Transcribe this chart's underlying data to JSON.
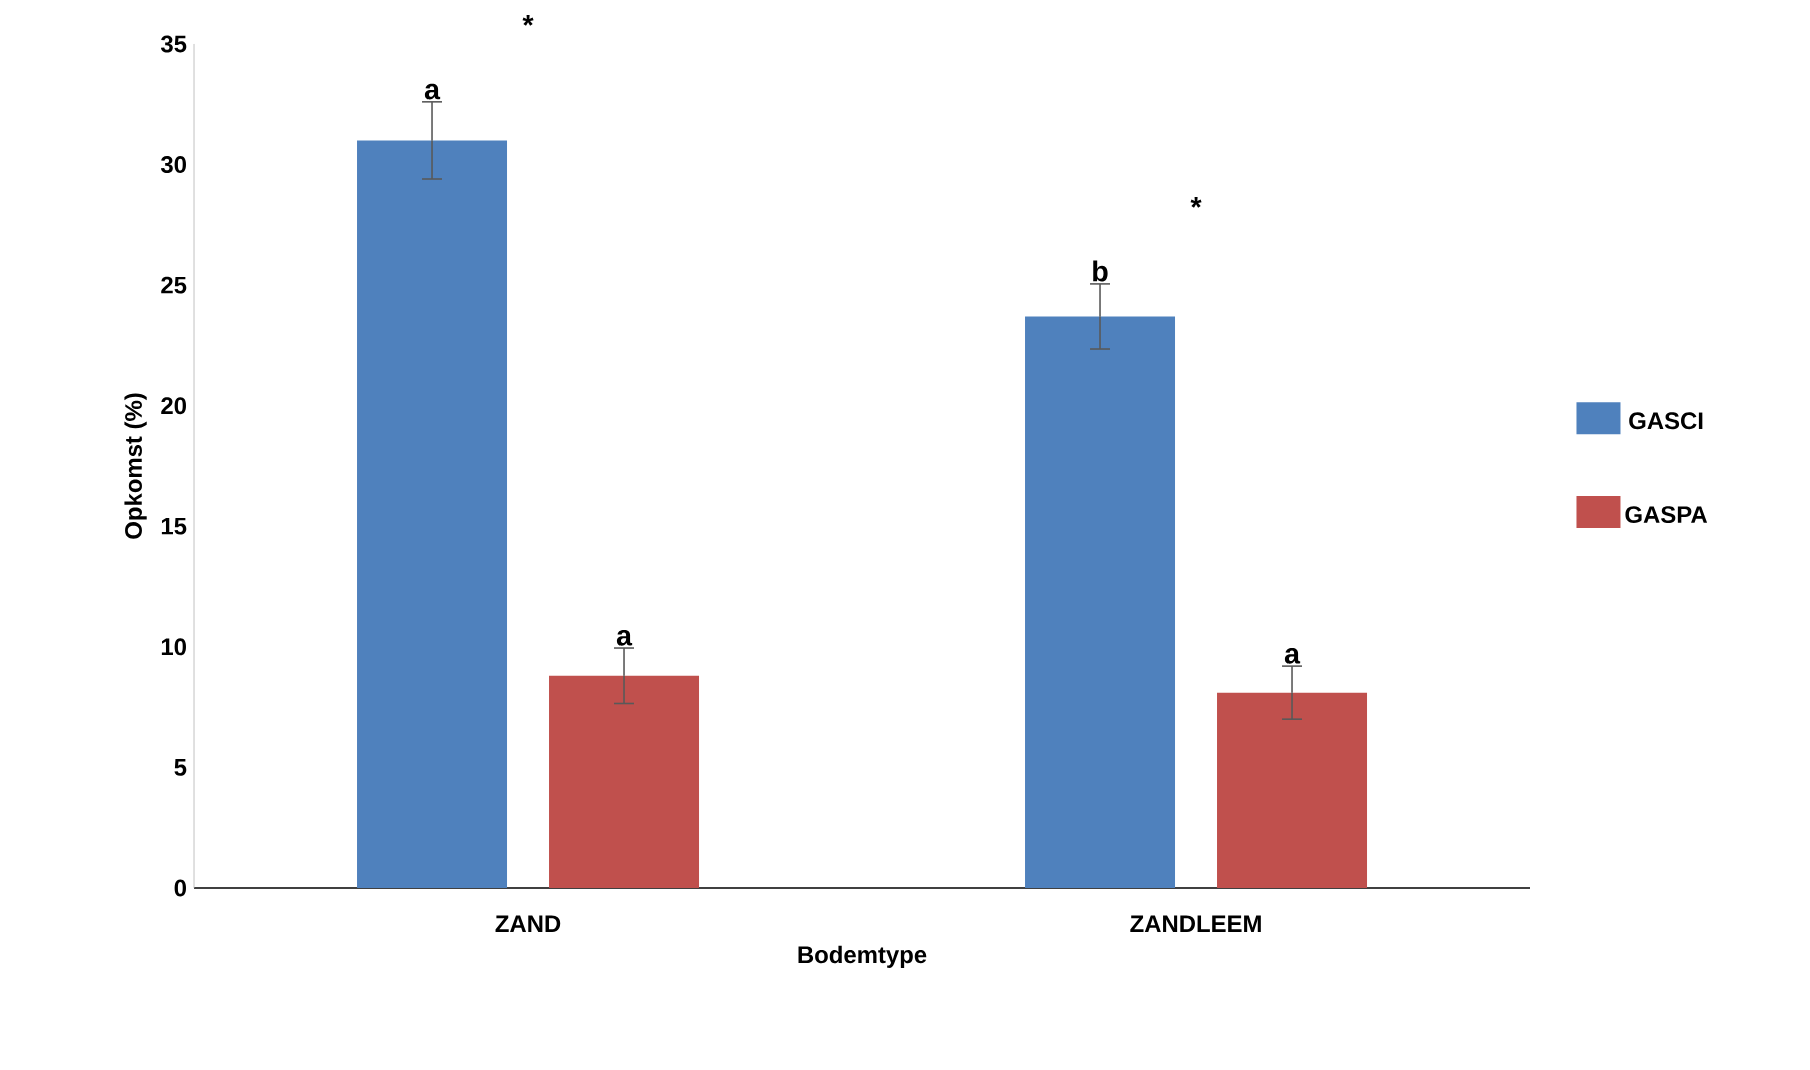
{
  "chart_data": {
    "type": "bar",
    "xlabel": "Bodemtype",
    "ylabel": "Opkomst (%)",
    "categories": [
      "ZAND",
      "ZANDLEEM"
    ],
    "series": [
      {
        "name": "GASCI",
        "color": "#4f81bd",
        "values": [
          31.0,
          23.7
        ],
        "errors": [
          1.6,
          1.35
        ],
        "value_labels": [
          "a",
          "b"
        ]
      },
      {
        "name": "GASPA",
        "color": "#c0504d",
        "values": [
          8.8,
          8.1
        ],
        "errors": [
          1.15,
          1.1
        ],
        "value_labels": [
          "a",
          "a"
        ]
      }
    ],
    "annotations": [
      "*",
      "*"
    ],
    "ylim": [
      0,
      35
    ],
    "yticks": [
      0,
      5,
      10,
      15,
      20,
      25,
      30,
      35
    ],
    "grid": false,
    "legend": "right"
  }
}
